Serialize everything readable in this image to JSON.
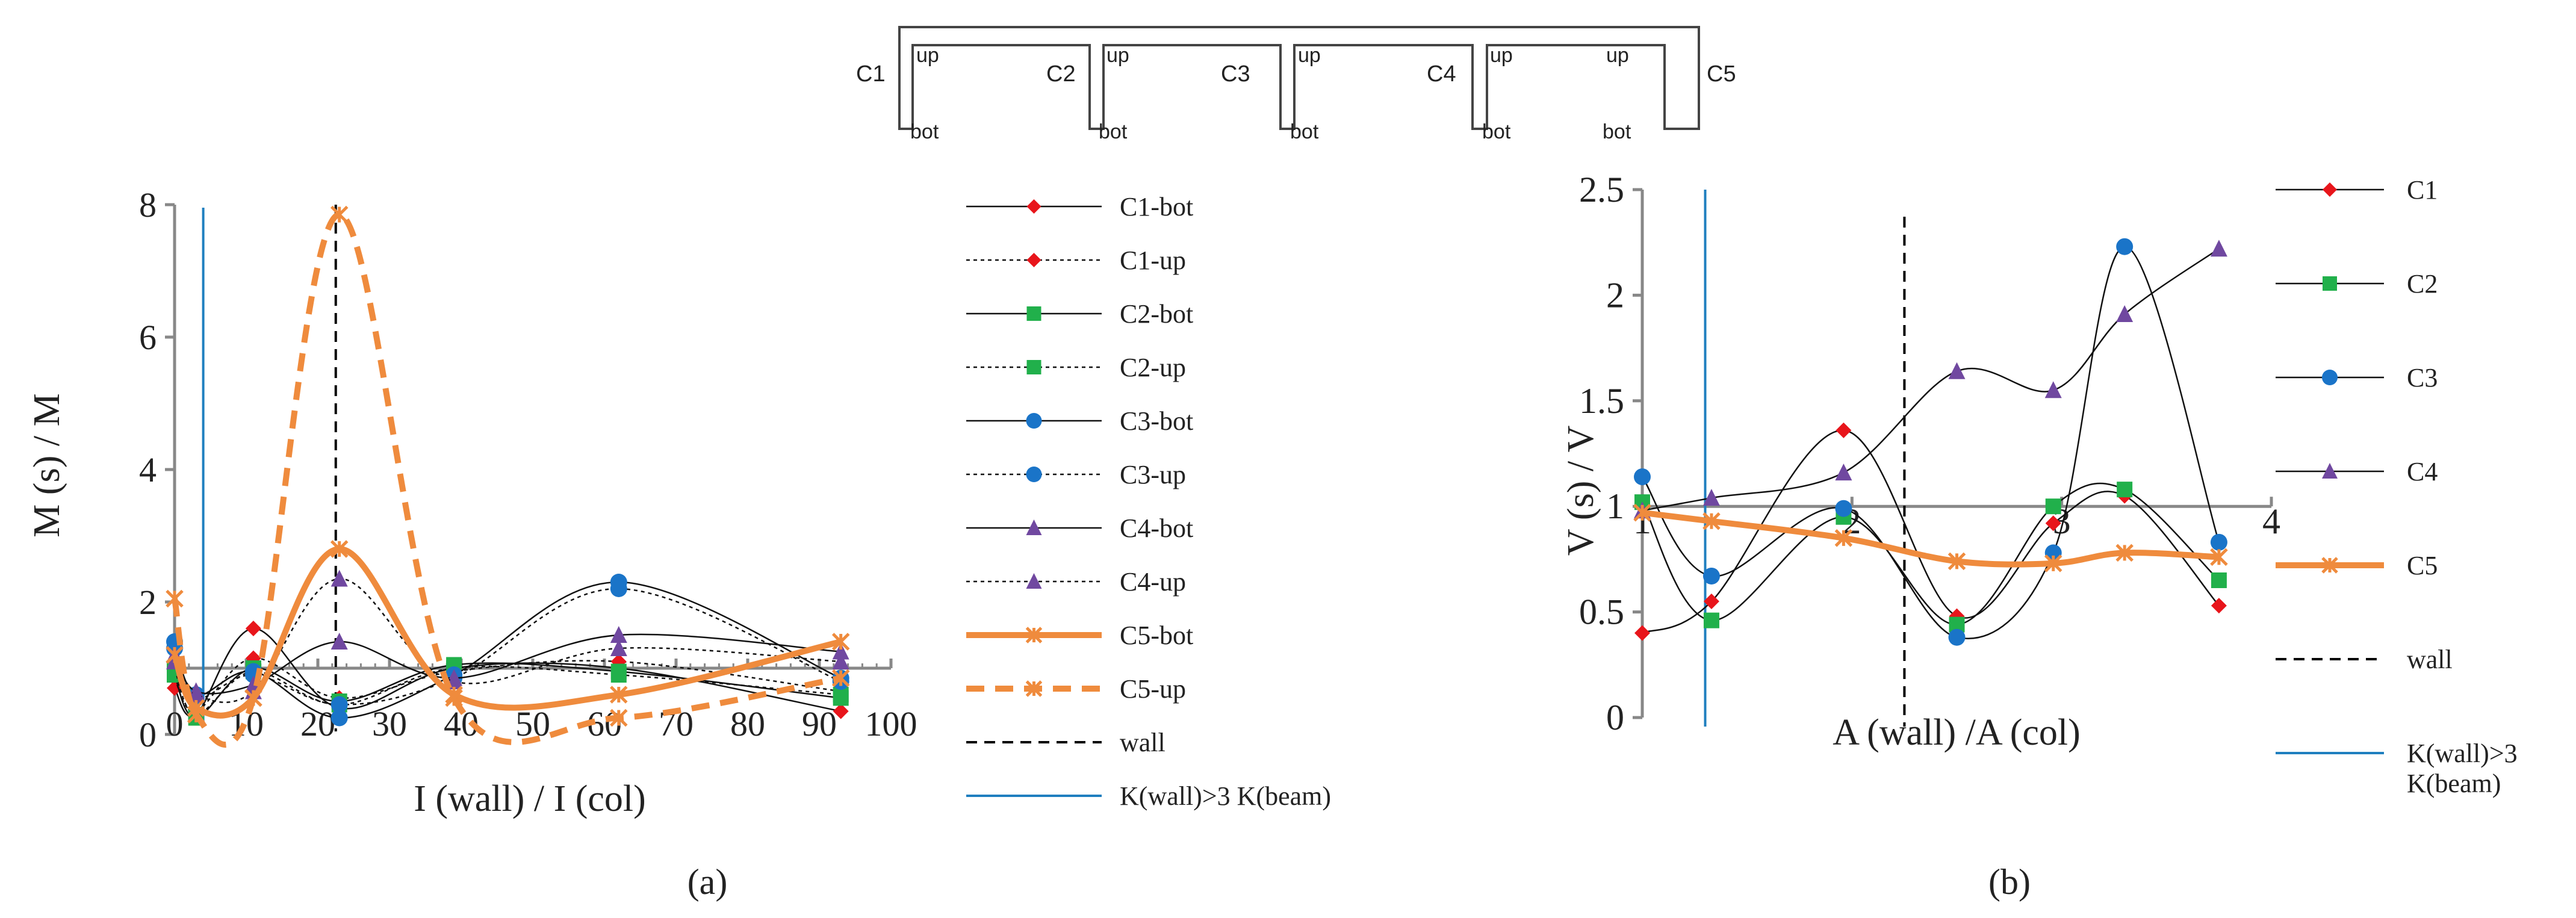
{
  "schematic": {
    "columns": [
      "C1",
      "C2",
      "C3",
      "C4",
      "C5"
    ],
    "up_label": "up",
    "bot_label": "bot"
  },
  "colors": {
    "C1": "#e8151b",
    "C2": "#21b04b",
    "C3": "#1a74c8",
    "C4": "#7048a0",
    "C5": "#ef8b3d",
    "wall": "#000000",
    "kline": "#1f7fbf",
    "axis": "#888888",
    "curve": "#111111"
  },
  "chart_data": [
    {
      "id": "a",
      "type": "line",
      "panel_label": "(a)",
      "xlabel": "I (wall) / I (col)",
      "ylabel": "M (s) / M",
      "xlim": [
        0,
        100
      ],
      "ylim": [
        0,
        8
      ],
      "x_ticks": [
        "0",
        "10",
        "20",
        "30",
        "40",
        "50",
        "60",
        "70",
        "80",
        "90",
        "100"
      ],
      "y_ticks": [
        "0",
        "2",
        "4",
        "6",
        "8"
      ],
      "x_axis_crossing": 1,
      "wall_x": 22.5,
      "kline_x": 4,
      "series": [
        {
          "name": "C1-bot",
          "color": "C1",
          "marker": "diamond",
          "dash": "solid",
          "width": 3,
          "x": [
            0,
            3,
            11,
            23,
            39,
            62,
            93
          ],
          "y": [
            0.7,
            0.3,
            1.6,
            0.4,
            1.0,
            1.0,
            0.35
          ]
        },
        {
          "name": "C1-up",
          "color": "C1",
          "marker": "diamond",
          "dash": "dotted",
          "width": 3,
          "x": [
            0,
            3,
            11,
            23,
            39,
            62,
            93
          ],
          "y": [
            0.85,
            0.35,
            1.15,
            0.55,
            0.95,
            1.1,
            0.65
          ]
        },
        {
          "name": "C2-bot",
          "color": "C2",
          "marker": "square",
          "dash": "solid",
          "width": 3,
          "x": [
            0,
            3,
            11,
            23,
            39,
            62,
            93
          ],
          "y": [
            0.9,
            0.25,
            1.0,
            0.5,
            1.05,
            0.95,
            0.55
          ]
        },
        {
          "name": "C2-up",
          "color": "C2",
          "marker": "square",
          "dash": "dotted",
          "width": 3,
          "x": [
            0,
            3,
            11,
            23,
            39,
            62,
            93
          ],
          "y": [
            1.0,
            0.3,
            0.95,
            0.45,
            1.0,
            0.9,
            0.6
          ]
        },
        {
          "name": "C3-bot",
          "color": "C3",
          "marker": "circle",
          "dash": "solid",
          "width": 3,
          "x": [
            0,
            3,
            11,
            23,
            39,
            62,
            93
          ],
          "y": [
            1.4,
            0.6,
            0.95,
            0.25,
            0.9,
            2.3,
            0.85
          ]
        },
        {
          "name": "C3-up",
          "color": "C3",
          "marker": "circle",
          "dash": "dotted",
          "width": 3,
          "x": [
            0,
            3,
            11,
            23,
            39,
            62,
            93
          ],
          "y": [
            1.3,
            0.55,
            0.9,
            0.45,
            0.85,
            2.2,
            0.8
          ]
        },
        {
          "name": "C4-bot",
          "color": "C4",
          "marker": "triangle",
          "dash": "solid",
          "width": 3,
          "x": [
            0,
            3,
            11,
            23,
            39,
            62,
            93
          ],
          "y": [
            1.2,
            0.65,
            0.75,
            1.4,
            0.85,
            1.5,
            1.25
          ]
        },
        {
          "name": "C4-up",
          "color": "C4",
          "marker": "triangle",
          "dash": "dotted",
          "width": 3,
          "x": [
            0,
            3,
            11,
            23,
            39,
            62,
            93
          ],
          "y": [
            1.1,
            0.6,
            0.65,
            2.35,
            0.8,
            1.3,
            1.1
          ]
        },
        {
          "name": "C5-bot",
          "color": "C5",
          "marker": "star",
          "dash": "solid",
          "width": 10,
          "x": [
            0,
            3,
            11,
            23,
            39,
            62,
            93
          ],
          "y": [
            1.2,
            0.4,
            0.55,
            2.8,
            0.6,
            0.6,
            1.4
          ]
        },
        {
          "name": "C5-up",
          "color": "C5",
          "marker": "star",
          "dash": "dashed",
          "width": 10,
          "x": [
            0,
            3,
            11,
            23,
            39,
            62,
            93
          ],
          "y": [
            2.05,
            0.3,
            0.55,
            7.85,
            0.55,
            0.25,
            0.85
          ]
        }
      ],
      "legend": [
        "C1-bot",
        "C1-up",
        "C2-bot",
        "C2-up",
        "C3-bot",
        "C3-up",
        "C4-bot",
        "C4-up",
        "C5-bot",
        "C5-up",
        "wall",
        "K(wall)>3 K(beam)"
      ]
    },
    {
      "id": "b",
      "type": "line",
      "panel_label": "(b)",
      "xlabel": "A (wall) /A (col)",
      "ylabel": "V (s) / V",
      "xlim": [
        1,
        4
      ],
      "ylim": [
        0,
        2.5
      ],
      "x_ticks": [
        "1",
        "2",
        "3",
        "4"
      ],
      "y_ticks": [
        "0",
        "0.5",
        "1",
        "1.5",
        "2",
        "2.5"
      ],
      "x_axis_crossing": 1,
      "wall_x": 2.25,
      "kline_x": 1.3,
      "series": [
        {
          "name": "C1",
          "color": "C1",
          "marker": "diamond",
          "dash": "solid",
          "width": 3,
          "x": [
            1,
            1.33,
            1.96,
            2.5,
            2.96,
            3.3,
            3.75
          ],
          "y": [
            0.4,
            0.55,
            1.36,
            0.48,
            0.92,
            1.05,
            0.53
          ]
        },
        {
          "name": "C2",
          "color": "C2",
          "marker": "square",
          "dash": "solid",
          "width": 3,
          "x": [
            1,
            1.33,
            1.96,
            2.5,
            2.96,
            3.3,
            3.75
          ],
          "y": [
            1.02,
            0.46,
            0.95,
            0.44,
            1.0,
            1.08,
            0.65
          ]
        },
        {
          "name": "C3",
          "color": "C3",
          "marker": "circle",
          "dash": "solid",
          "width": 3,
          "x": [
            1,
            1.33,
            1.96,
            2.5,
            2.96,
            3.3,
            3.75
          ],
          "y": [
            1.14,
            0.67,
            0.99,
            0.38,
            0.78,
            2.23,
            0.83
          ]
        },
        {
          "name": "C4",
          "color": "C4",
          "marker": "triangle",
          "dash": "solid",
          "width": 3,
          "x": [
            1,
            1.33,
            1.96,
            2.5,
            2.96,
            3.3,
            3.75
          ],
          "y": [
            0.98,
            1.04,
            1.16,
            1.64,
            1.55,
            1.91,
            2.22
          ]
        },
        {
          "name": "C5",
          "color": "C5",
          "marker": "star",
          "dash": "solid",
          "width": 10,
          "x": [
            1,
            1.33,
            1.96,
            2.5,
            2.96,
            3.3,
            3.75
          ],
          "y": [
            0.97,
            0.93,
            0.85,
            0.74,
            0.73,
            0.78,
            0.76
          ]
        }
      ],
      "legend": [
        "C1",
        "C2",
        "C3",
        "C4",
        "C5",
        "wall",
        "K(wall)>3 K(beam)"
      ]
    }
  ]
}
